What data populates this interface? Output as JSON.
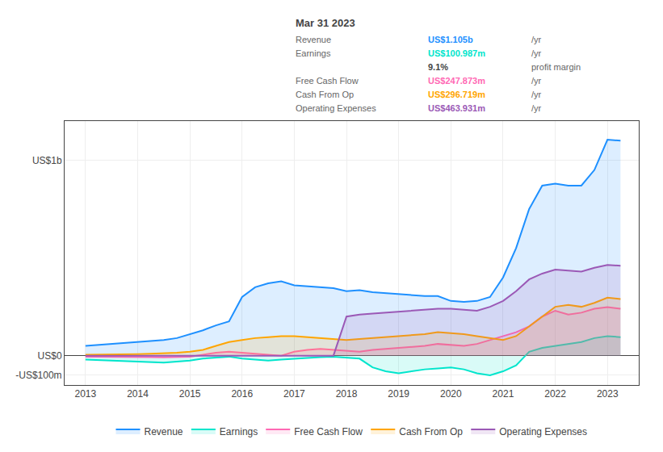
{
  "chart_data": {
    "type": "area",
    "x": [
      2013,
      2013.25,
      2013.5,
      2013.75,
      2014,
      2014.25,
      2014.5,
      2014.75,
      2015,
      2015.25,
      2015.5,
      2015.75,
      2016,
      2016.25,
      2016.5,
      2016.75,
      2017,
      2017.25,
      2017.5,
      2017.75,
      2018,
      2018.25,
      2018.5,
      2018.75,
      2019,
      2019.25,
      2019.5,
      2019.75,
      2020,
      2020.25,
      2020.5,
      2020.75,
      2021,
      2021.25,
      2021.5,
      2021.75,
      2022,
      2022.25,
      2022.5,
      2022.75,
      2023,
      2023.25
    ],
    "series": [
      {
        "name": "Revenue",
        "color": "#1e90ff",
        "values": [
          50,
          55,
          58,
          62,
          70,
          75,
          80,
          90,
          110,
          130,
          155,
          175,
          300,
          350,
          370,
          380,
          360,
          355,
          350,
          345,
          330,
          335,
          325,
          320,
          315,
          310,
          305,
          305,
          280,
          275,
          280,
          300,
          400,
          550,
          750,
          870,
          880,
          870,
          870,
          950,
          1105,
          1100
        ]
      },
      {
        "name": "Earnings",
        "color": "#00e5cc",
        "values": [
          -20,
          -22,
          -25,
          -28,
          -30,
          -32,
          -35,
          -30,
          -25,
          -15,
          -10,
          -5,
          -15,
          -20,
          -25,
          -20,
          -15,
          -10,
          -8,
          -5,
          -10,
          -15,
          -60,
          -80,
          -90,
          -80,
          -70,
          -65,
          -60,
          -70,
          -90,
          -100,
          -80,
          -50,
          20,
          40,
          50,
          60,
          70,
          90,
          100,
          95
        ]
      },
      {
        "name": "Free Cash Flow",
        "color": "#ff69b4",
        "values": [
          -5,
          -5,
          -6,
          -7,
          -8,
          -8,
          -9,
          -8,
          -5,
          5,
          15,
          20,
          15,
          10,
          5,
          0,
          20,
          30,
          35,
          30,
          25,
          20,
          30,
          35,
          40,
          45,
          50,
          60,
          55,
          50,
          60,
          80,
          100,
          120,
          150,
          200,
          230,
          210,
          220,
          240,
          248,
          240
        ]
      },
      {
        "name": "Cash From Op",
        "color": "#ffa500",
        "values": [
          5,
          5,
          6,
          7,
          8,
          10,
          12,
          15,
          20,
          30,
          50,
          70,
          80,
          90,
          95,
          100,
          100,
          95,
          90,
          85,
          80,
          85,
          90,
          95,
          100,
          105,
          110,
          120,
          115,
          110,
          100,
          90,
          80,
          100,
          150,
          200,
          250,
          260,
          250,
          270,
          297,
          290
        ]
      },
      {
        "name": "Operating Expenses",
        "color": "#9b59b6",
        "values": [
          0,
          0,
          0,
          0,
          0,
          0,
          0,
          0,
          0,
          0,
          0,
          0,
          0,
          0,
          0,
          0,
          0,
          0,
          0,
          0,
          200,
          210,
          215,
          220,
          225,
          230,
          235,
          240,
          240,
          235,
          230,
          250,
          280,
          330,
          390,
          420,
          440,
          435,
          430,
          450,
          464,
          460
        ]
      }
    ],
    "xlim": [
      2012.6,
      2023.6
    ],
    "xticks": [
      2013,
      2014,
      2015,
      2016,
      2017,
      2018,
      2019,
      2020,
      2021,
      2022,
      2023
    ],
    "ylim": [
      -150,
      1200
    ],
    "yticks": [
      {
        "value": 1000,
        "label": "US$1b"
      },
      {
        "value": 0,
        "label": "US$0"
      },
      {
        "value": -100,
        "label": "-US$100m"
      }
    ],
    "grid": true,
    "legend": "bottom",
    "annotations": {
      "title": "Mar 31 2023",
      "rows": [
        {
          "label": "Revenue",
          "value": "US$1.105b",
          "unit": "/yr",
          "color": "#1e90ff"
        },
        {
          "label": "Earnings",
          "value": "US$100.987m",
          "unit": "/yr",
          "color": "#00e5cc"
        },
        {
          "value": "9.1%",
          "unit": "profit margin"
        },
        {
          "label": "Free Cash Flow",
          "value": "US$247.873m",
          "unit": "/yr",
          "color": "#ff69b4"
        },
        {
          "label": "Cash From Op",
          "value": "US$296.719m",
          "unit": "/yr",
          "color": "#ffa500"
        },
        {
          "label": "Operating Expenses",
          "value": "US$463.931m",
          "unit": "/yr",
          "color": "#9b59b6"
        }
      ]
    }
  }
}
